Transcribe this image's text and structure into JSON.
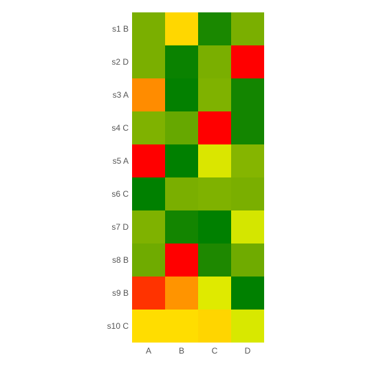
{
  "chart_data": {
    "type": "heatmap",
    "title": "",
    "xlabel": "",
    "ylabel": "",
    "x_categories": [
      "A",
      "B",
      "C",
      "D"
    ],
    "y_categories": [
      "s1 B",
      "s2 D",
      "s3 A",
      "s4 C",
      "s5 A",
      "s6 C",
      "s7 D",
      "s8 B",
      "s9 B",
      "s10 C"
    ],
    "cell_colors": [
      [
        "#7aaf00",
        "#ffd700",
        "#1a8800",
        "#7aaf00"
      ],
      [
        "#7aaf00",
        "#0a8200",
        "#7aaf00",
        "#ff0000"
      ],
      [
        "#ff8c00",
        "#038000",
        "#7fb200",
        "#138500"
      ],
      [
        "#7fb200",
        "#66a800",
        "#ff0000",
        "#138500"
      ],
      [
        "#ff0000",
        "#008000",
        "#dae600",
        "#85b500"
      ],
      [
        "#008000",
        "#7aaf00",
        "#7fb200",
        "#7aaf00"
      ],
      [
        "#7fb200",
        "#138500",
        "#008000",
        "#d4e600"
      ],
      [
        "#6fab00",
        "#ff0000",
        "#1e8800",
        "#6fab00"
      ],
      [
        "#ff3300",
        "#ff9400",
        "#dfea00",
        "#008000"
      ],
      [
        "#ffdd00",
        "#ffdd00",
        "#ffd500",
        "#d8e800"
      ]
    ],
    "grid": false,
    "legend": "none"
  }
}
